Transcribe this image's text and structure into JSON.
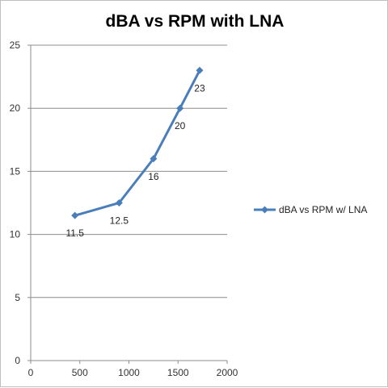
{
  "chart_data": {
    "type": "line",
    "title": "dBA vs RPM with LNA",
    "xlabel": "",
    "ylabel": "",
    "xlim": [
      0,
      2000
    ],
    "ylim": [
      0,
      25
    ],
    "x_ticks": [
      0,
      500,
      1000,
      1500,
      2000
    ],
    "y_ticks": [
      0,
      5,
      10,
      15,
      20,
      25
    ],
    "grid": "horizontal",
    "legend_position": "right",
    "series": [
      {
        "name": "dBA vs RPM w/ LNA",
        "color": "#4a7ebb",
        "marker": "diamond",
        "x": [
          450,
          900,
          1250,
          1520,
          1720
        ],
        "y": [
          11.5,
          12.5,
          16,
          20,
          23
        ],
        "labels": [
          "11.5",
          "12.5",
          "16",
          "20",
          "23"
        ]
      }
    ]
  }
}
